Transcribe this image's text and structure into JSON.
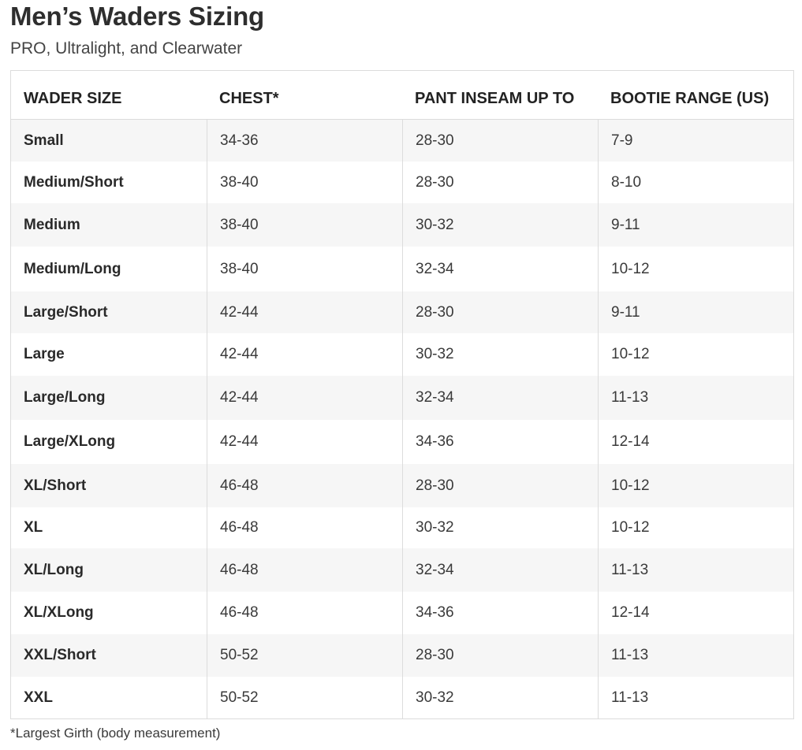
{
  "title": "Men’s Waders Sizing",
  "subtitle": "PRO, Ultralight, and Clearwater",
  "table": {
    "headers": [
      "WADER SIZE",
      "CHEST*",
      "PANT INSEAM UP TO",
      "BOOTIE RANGE (US)"
    ],
    "rows": [
      [
        "Small",
        "34-36",
        "28-30",
        "7-9"
      ],
      [
        "Medium/Short",
        "38-40",
        "28-30",
        "8-10"
      ],
      [
        "Medium",
        "38-40",
        "30-32",
        "9-11"
      ],
      [
        "Medium/Long",
        "38-40",
        "32-34",
        "10-12"
      ],
      [
        "Large/Short",
        "42-44",
        "28-30",
        "9-11"
      ],
      [
        "Large",
        "42-44",
        "30-32",
        "10-12"
      ],
      [
        "Large/Long",
        "42-44",
        "32-34",
        "11-13"
      ],
      [
        "Large/XLong",
        "42-44",
        "34-36",
        "12-14"
      ],
      [
        "XL/Short",
        "46-48",
        "28-30",
        "10-12"
      ],
      [
        "XL",
        "46-48",
        "30-32",
        "10-12"
      ],
      [
        "XL/Long",
        "46-48",
        "32-34",
        "11-13"
      ],
      [
        "XL/XLong",
        "46-48",
        "34-36",
        "12-14"
      ],
      [
        "XXL/Short",
        "50-52",
        "28-30",
        "11-13"
      ],
      [
        "XXL",
        "50-52",
        "30-32",
        "11-13"
      ]
    ]
  },
  "footnote": "*Largest Girth (body measurement)"
}
